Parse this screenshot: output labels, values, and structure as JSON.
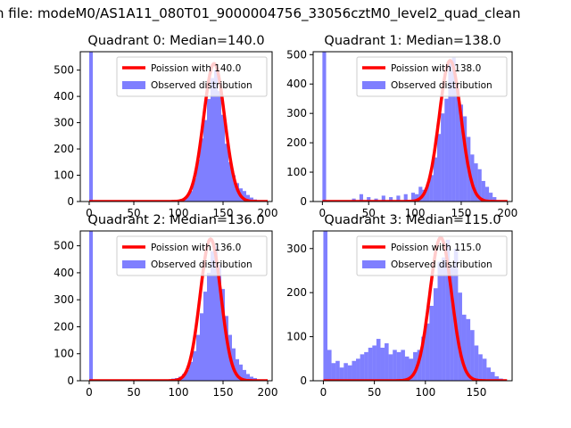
{
  "figure": {
    "suptitle": "n file: modeM0/AS1A11_080T01_9000004756_33056cztM0_level2_quad_clean"
  },
  "colors": {
    "fit": "#ff0000",
    "hist": "#0000ff",
    "axis": "#000000"
  },
  "chart_data": [
    {
      "type": "bar",
      "title": "Quadrant 0: Median=140.0",
      "legend": [
        "Poission with 140.0",
        "Observed distribution"
      ],
      "legend_position": "upper-right",
      "xlim": [
        -10,
        205
      ],
      "ylim": [
        0,
        570
      ],
      "xticks": [
        0,
        50,
        100,
        150,
        200
      ],
      "yticks": [
        0,
        100,
        200,
        300,
        400,
        500
      ],
      "bin_width": 4,
      "bins": [
        [
          0,
          570
        ],
        [
          80,
          4
        ],
        [
          84,
          2
        ],
        [
          88,
          2
        ],
        [
          92,
          3
        ],
        [
          96,
          4
        ],
        [
          100,
          5
        ],
        [
          104,
          10
        ],
        [
          108,
          20
        ],
        [
          112,
          40
        ],
        [
          116,
          90
        ],
        [
          120,
          160
        ],
        [
          124,
          240
        ],
        [
          128,
          310
        ],
        [
          132,
          390
        ],
        [
          136,
          470
        ],
        [
          140,
          500
        ],
        [
          144,
          420
        ],
        [
          148,
          330
        ],
        [
          152,
          220
        ],
        [
          156,
          150
        ],
        [
          160,
          100
        ],
        [
          164,
          70
        ],
        [
          168,
          50
        ],
        [
          172,
          40
        ],
        [
          176,
          25
        ],
        [
          180,
          15
        ],
        [
          184,
          8
        ],
        [
          188,
          5
        ],
        [
          192,
          3
        ]
      ],
      "fit": {
        "mean": 140.0,
        "peak": 525
      }
    },
    {
      "type": "bar",
      "title": "Quadrant 1: Median=138.0",
      "legend": [
        "Poission with 138.0",
        "Observed distribution"
      ],
      "legend_position": "upper-right",
      "xlim": [
        -10,
        205
      ],
      "ylim": [
        0,
        510
      ],
      "xticks": [
        0,
        50,
        100,
        150,
        200
      ],
      "yticks": [
        0,
        100,
        200,
        300,
        400,
        500
      ],
      "bin_width": 4,
      "bins": [
        [
          0,
          510
        ],
        [
          32,
          10
        ],
        [
          40,
          25
        ],
        [
          48,
          15
        ],
        [
          56,
          10
        ],
        [
          64,
          20
        ],
        [
          72,
          15
        ],
        [
          80,
          20
        ],
        [
          88,
          25
        ],
        [
          96,
          30
        ],
        [
          100,
          25
        ],
        [
          104,
          50
        ],
        [
          108,
          40
        ],
        [
          112,
          60
        ],
        [
          116,
          90
        ],
        [
          120,
          150
        ],
        [
          124,
          230
        ],
        [
          128,
          300
        ],
        [
          132,
          350
        ],
        [
          136,
          470
        ],
        [
          140,
          490
        ],
        [
          144,
          400
        ],
        [
          148,
          330
        ],
        [
          152,
          290
        ],
        [
          156,
          220
        ],
        [
          160,
          160
        ],
        [
          164,
          130
        ],
        [
          168,
          110
        ],
        [
          172,
          70
        ],
        [
          176,
          50
        ],
        [
          180,
          30
        ],
        [
          184,
          15
        ],
        [
          188,
          5
        ]
      ],
      "fit": {
        "mean": 138.0,
        "peak": 480
      }
    },
    {
      "type": "bar",
      "title": "Quadrant 2: Median=136.0",
      "legend": [
        "Poission with 136.0",
        "Observed distribution"
      ],
      "legend_position": "upper-right",
      "xlim": [
        -10,
        205
      ],
      "ylim": [
        0,
        555
      ],
      "xticks": [
        0,
        50,
        100,
        150,
        200
      ],
      "yticks": [
        0,
        100,
        200,
        300,
        400,
        500
      ],
      "bin_width": 4,
      "bins": [
        [
          0,
          555
        ],
        [
          80,
          3
        ],
        [
          84,
          5
        ],
        [
          88,
          5
        ],
        [
          92,
          8
        ],
        [
          96,
          10
        ],
        [
          100,
          15
        ],
        [
          104,
          25
        ],
        [
          108,
          40
        ],
        [
          112,
          70
        ],
        [
          116,
          110
        ],
        [
          120,
          170
        ],
        [
          124,
          250
        ],
        [
          128,
          330
        ],
        [
          132,
          400
        ],
        [
          136,
          480
        ],
        [
          140,
          500
        ],
        [
          144,
          430
        ],
        [
          148,
          340
        ],
        [
          152,
          240
        ],
        [
          156,
          170
        ],
        [
          160,
          120
        ],
        [
          164,
          80
        ],
        [
          168,
          60
        ],
        [
          172,
          40
        ],
        [
          176,
          25
        ],
        [
          180,
          15
        ],
        [
          184,
          10
        ],
        [
          188,
          5
        ],
        [
          192,
          3
        ]
      ],
      "fit": {
        "mean": 136.0,
        "peak": 525
      }
    },
    {
      "type": "bar",
      "title": "Quadrant 3: Median=115.0",
      "legend": [
        "Poission with 115.0",
        "Observed distribution"
      ],
      "legend_position": "upper-right",
      "xlim": [
        -10,
        185
      ],
      "ylim": [
        0,
        340
      ],
      "xticks": [
        0,
        50,
        100,
        150
      ],
      "yticks": [
        0,
        100,
        200,
        300
      ],
      "bin_width": 4,
      "bins": [
        [
          0,
          340
        ],
        [
          4,
          70
        ],
        [
          8,
          40
        ],
        [
          12,
          45
        ],
        [
          16,
          30
        ],
        [
          20,
          40
        ],
        [
          24,
          35
        ],
        [
          28,
          45
        ],
        [
          32,
          50
        ],
        [
          36,
          60
        ],
        [
          40,
          65
        ],
        [
          44,
          75
        ],
        [
          48,
          80
        ],
        [
          52,
          95
        ],
        [
          56,
          75
        ],
        [
          60,
          85
        ],
        [
          64,
          60
        ],
        [
          68,
          70
        ],
        [
          72,
          65
        ],
        [
          76,
          70
        ],
        [
          80,
          55
        ],
        [
          84,
          50
        ],
        [
          88,
          65
        ],
        [
          92,
          70
        ],
        [
          96,
          100
        ],
        [
          100,
          130
        ],
        [
          104,
          170
        ],
        [
          108,
          210
        ],
        [
          112,
          270
        ],
        [
          116,
          280
        ],
        [
          120,
          320
        ],
        [
          124,
          260
        ],
        [
          128,
          300
        ],
        [
          132,
          200
        ],
        [
          136,
          150
        ],
        [
          140,
          140
        ],
        [
          144,
          115
        ],
        [
          148,
          80
        ],
        [
          152,
          60
        ],
        [
          156,
          50
        ],
        [
          160,
          30
        ],
        [
          164,
          20
        ],
        [
          168,
          10
        ],
        [
          172,
          5
        ]
      ],
      "fit": {
        "mean": 115.0,
        "peak": 325
      }
    }
  ]
}
